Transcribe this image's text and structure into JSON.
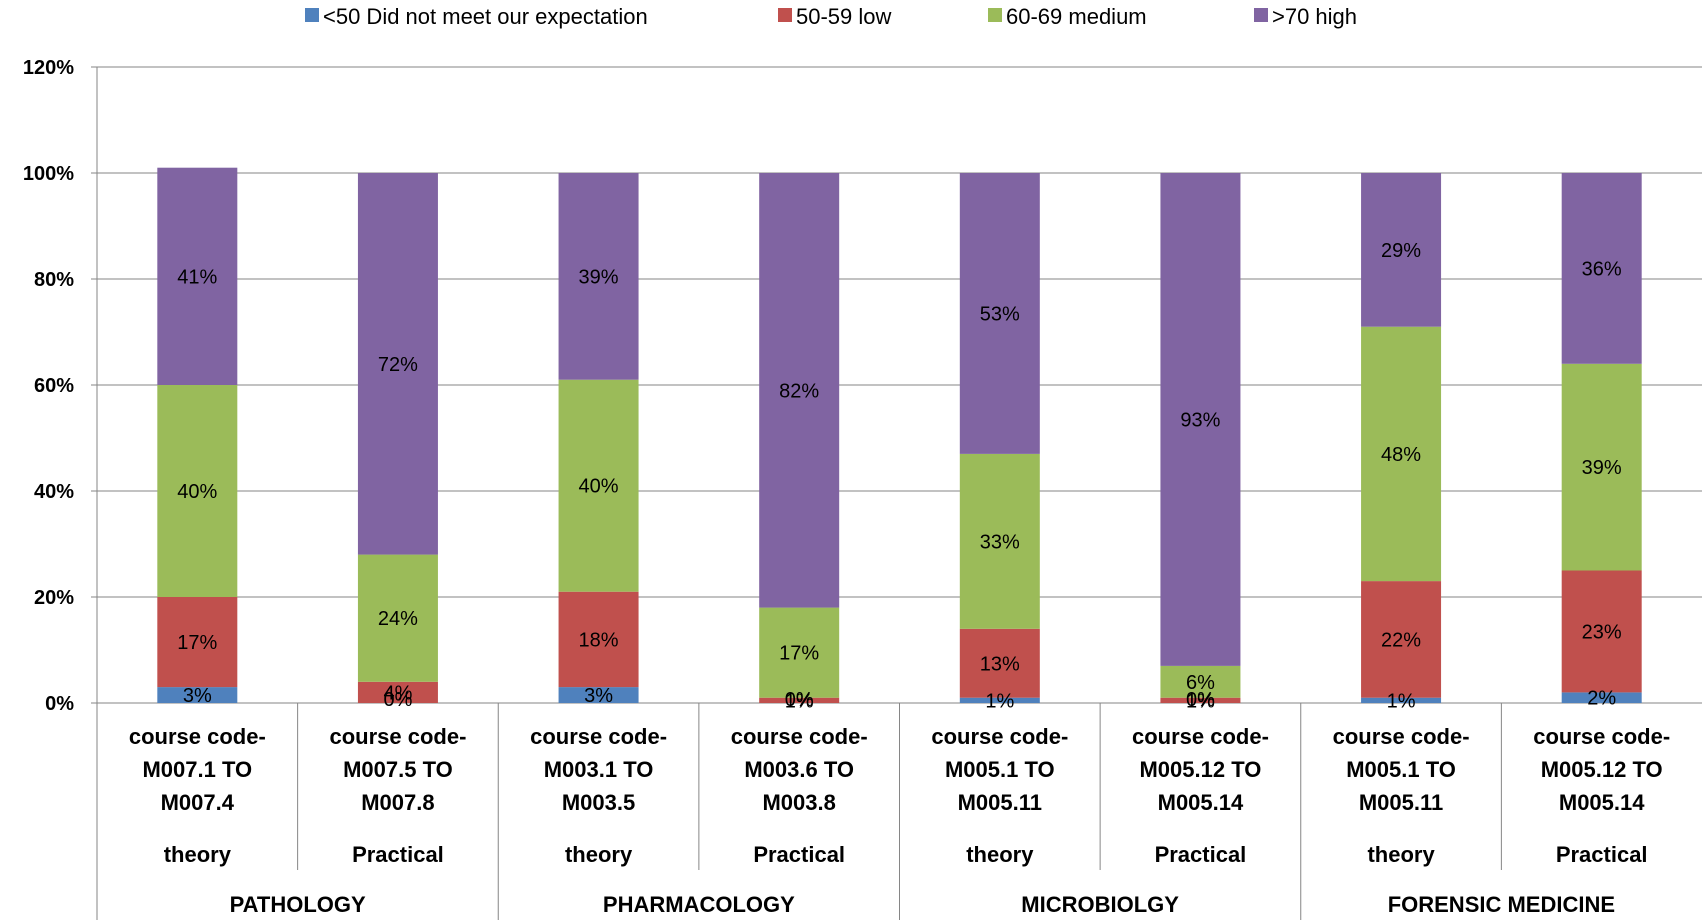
{
  "chart_data": {
    "type": "bar",
    "stacked": true,
    "legend_position": "top",
    "grid": true,
    "ylim": [
      0,
      120
    ],
    "yticks": [
      "0%",
      "20%",
      "40%",
      "60%",
      "80%",
      "100%",
      "120%"
    ],
    "categories": [
      {
        "code_lines": [
          "course code-",
          "M007.1 TO",
          "M007.4"
        ],
        "type": "theory"
      },
      {
        "code_lines": [
          "course code-",
          "M007.5 TO",
          "M007.8"
        ],
        "type": "Practical"
      },
      {
        "code_lines": [
          "course code-",
          "M003.1 TO",
          "M003.5"
        ],
        "type": "theory"
      },
      {
        "code_lines": [
          "course code-",
          "M003.6 TO",
          "M003.8"
        ],
        "type": "Practical"
      },
      {
        "code_lines": [
          "course code-",
          "M005.1 TO",
          "M005.11"
        ],
        "type": "theory"
      },
      {
        "code_lines": [
          "course code-",
          "M005.12 TO",
          "M005.14"
        ],
        "type": "Practical"
      },
      {
        "code_lines": [
          "course code-",
          "M005.1 TO",
          "M005.11"
        ],
        "type": "theory"
      },
      {
        "code_lines": [
          "course code-",
          "M005.12 TO",
          "M005.14"
        ],
        "type": "Practical"
      }
    ],
    "groups": [
      "PATHOLOGY",
      "PHARMACOLOGY",
      "MICROBIOLGY",
      "FORENSIC MEDICINE"
    ],
    "series": [
      {
        "name": "<50 Did not meet our expectation",
        "color": "#4F81BD",
        "values": [
          3,
          0,
          3,
          0,
          1,
          0,
          1,
          2
        ],
        "labels": [
          "3%",
          "0%",
          "3%",
          "0%",
          "1%",
          "0%",
          "1%",
          "2%"
        ]
      },
      {
        "name": "50-59 low",
        "color": "#C0504D",
        "values": [
          17,
          4,
          18,
          1,
          13,
          1,
          22,
          23
        ],
        "labels": [
          "17%",
          "4%",
          "18%",
          "1%",
          "13%",
          "1%",
          "22%",
          "23%"
        ]
      },
      {
        "name": "60-69 medium",
        "color": "#9BBB59",
        "values": [
          40,
          24,
          40,
          17,
          33,
          6,
          48,
          39
        ],
        "labels": [
          "40%",
          "24%",
          "40%",
          "17%",
          "33%",
          "6%",
          "48%",
          "39%"
        ]
      },
      {
        "name": ">70 high",
        "color": "#8064A2",
        "values": [
          41,
          72,
          39,
          82,
          53,
          93,
          29,
          36
        ],
        "labels": [
          "41%",
          "72%",
          "39%",
          "82%",
          "53%",
          "93%",
          "29%",
          "36%"
        ]
      }
    ]
  }
}
